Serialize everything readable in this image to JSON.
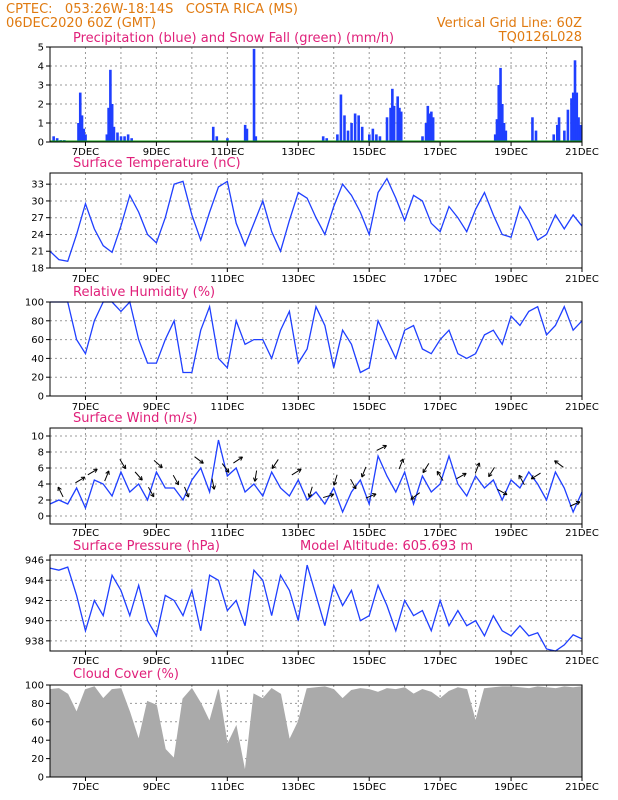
{
  "header": {
    "line1_left": "CPTEC:   053:26W-18:14S   COSTA RICA (MS)",
    "line2_left": "06DEC2020 60Z (GMT)",
    "line1_right": "Vertical Grid Line: 60Z",
    "line2_right": "TQ0126L028",
    "color": "#e07a10"
  },
  "colors": {
    "title": "#e0207a",
    "rain": "#1f3fff",
    "snow": "#10a010",
    "line": "#1f3fff",
    "cloud": "#aaaaaa",
    "grid": "#999999"
  },
  "x_labels": [
    "7DEC",
    "9DEC",
    "11DEC",
    "13DEC",
    "15DEC",
    "17DEC",
    "19DEC",
    "21DEC"
  ],
  "chart_data": [
    {
      "type": "bar",
      "title": "Precipitation (blue) and Snow Fall (green) (mm/h)",
      "ylim": [
        0,
        5
      ],
      "yticks": [
        0,
        1,
        2,
        3,
        4,
        5
      ],
      "x_range_days": [
        6.0,
        21.0
      ],
      "series": [
        {
          "name": "Precipitation (blue)",
          "points": [
            [
              6.1,
              0.3
            ],
            [
              6.2,
              0.2
            ],
            [
              6.3,
              0.1
            ],
            [
              6.4,
              0.1
            ],
            [
              6.8,
              1.0
            ],
            [
              6.85,
              2.6
            ],
            [
              6.9,
              1.4
            ],
            [
              6.95,
              0.7
            ],
            [
              7.0,
              0.4
            ],
            [
              7.6,
              0.4
            ],
            [
              7.65,
              1.8
            ],
            [
              7.7,
              3.8
            ],
            [
              7.75,
              2.0
            ],
            [
              7.8,
              0.8
            ],
            [
              7.9,
              0.5
            ],
            [
              8.0,
              0.3
            ],
            [
              8.1,
              0.3
            ],
            [
              8.2,
              0.4
            ],
            [
              8.3,
              0.2
            ],
            [
              10.6,
              0.8
            ],
            [
              10.7,
              0.3
            ],
            [
              11.0,
              0.2
            ],
            [
              11.5,
              0.9
            ],
            [
              11.55,
              0.7
            ],
            [
              11.75,
              4.9
            ],
            [
              11.8,
              0.3
            ],
            [
              13.7,
              0.3
            ],
            [
              13.8,
              0.2
            ],
            [
              14.1,
              0.4
            ],
            [
              14.2,
              2.5
            ],
            [
              14.3,
              1.4
            ],
            [
              14.4,
              0.6
            ],
            [
              14.5,
              1.0
            ],
            [
              14.6,
              1.5
            ],
            [
              14.7,
              1.4
            ],
            [
              14.8,
              0.8
            ],
            [
              15.0,
              0.4
            ],
            [
              15.1,
              0.7
            ],
            [
              15.2,
              0.4
            ],
            [
              15.3,
              0.3
            ],
            [
              15.5,
              1.3
            ],
            [
              15.6,
              1.8
            ],
            [
              15.65,
              2.8
            ],
            [
              15.7,
              1.9
            ],
            [
              15.8,
              2.4
            ],
            [
              15.85,
              1.8
            ],
            [
              15.9,
              1.6
            ],
            [
              16.5,
              0.3
            ],
            [
              16.6,
              1.0
            ],
            [
              16.65,
              1.9
            ],
            [
              16.7,
              1.5
            ],
            [
              16.75,
              1.6
            ],
            [
              16.8,
              1.3
            ],
            [
              18.55,
              0.4
            ],
            [
              18.6,
              1.2
            ],
            [
              18.65,
              3.0
            ],
            [
              18.7,
              3.9
            ],
            [
              18.75,
              2.0
            ],
            [
              18.8,
              1.0
            ],
            [
              18.85,
              0.6
            ],
            [
              19.6,
              1.3
            ],
            [
              19.7,
              0.6
            ],
            [
              20.2,
              0.4
            ],
            [
              20.3,
              0.9
            ],
            [
              20.35,
              1.3
            ],
            [
              20.5,
              0.6
            ],
            [
              20.6,
              1.7
            ],
            [
              20.7,
              2.3
            ],
            [
              20.75,
              2.6
            ],
            [
              20.8,
              4.3
            ],
            [
              20.85,
              2.6
            ],
            [
              20.9,
              1.3
            ],
            [
              20.95,
              0.9
            ]
          ]
        },
        {
          "name": "Snow Fall (green)",
          "points": [
            [
              6.0,
              0.0
            ],
            [
              21.0,
              0.0
            ]
          ]
        }
      ]
    },
    {
      "type": "line",
      "title": "Surface Temperature (nC)",
      "ylim": [
        18,
        35
      ],
      "yticks": [
        18,
        21,
        24,
        27,
        30,
        33
      ],
      "x": [
        6.0,
        6.25,
        6.5,
        6.75,
        7.0,
        7.25,
        7.5,
        7.75,
        8.0,
        8.25,
        8.5,
        8.75,
        9.0,
        9.25,
        9.5,
        9.75,
        10.0,
        10.25,
        10.5,
        10.75,
        11.0,
        11.25,
        11.5,
        11.75,
        12.0,
        12.25,
        12.5,
        12.75,
        13.0,
        13.25,
        13.5,
        13.75,
        14.0,
        14.25,
        14.5,
        14.75,
        15.0,
        15.25,
        15.5,
        15.75,
        16.0,
        16.25,
        16.5,
        16.75,
        17.0,
        17.25,
        17.5,
        17.75,
        18.0,
        18.25,
        18.5,
        18.75,
        19.0,
        19.25,
        19.5,
        19.75,
        20.0,
        20.25,
        20.5,
        20.75,
        21.0
      ],
      "y": [
        21.0,
        19.5,
        19.2,
        24.0,
        29.5,
        25.0,
        22.0,
        20.8,
        25.5,
        31.0,
        28.0,
        24.0,
        22.5,
        27.0,
        33.0,
        33.5,
        27.5,
        23.0,
        28.0,
        32.5,
        33.5,
        26.0,
        22.0,
        26.0,
        30.0,
        24.5,
        21.0,
        26.5,
        31.5,
        30.5,
        27.0,
        24.0,
        29.0,
        33.0,
        31.0,
        28.0,
        24.0,
        31.5,
        34.0,
        30.5,
        26.5,
        31.0,
        30.0,
        26.0,
        24.5,
        29.0,
        27.0,
        24.5,
        28.5,
        31.5,
        27.5,
        24.0,
        23.5,
        29.0,
        26.5,
        23.0,
        24.0,
        27.5,
        25.0,
        27.5,
        25.5
      ]
    },
    {
      "type": "line",
      "title": "Relative Humidity (%)",
      "ylim": [
        0,
        100
      ],
      "yticks": [
        0,
        20,
        40,
        60,
        80,
        100
      ],
      "x": [
        6.0,
        6.25,
        6.5,
        6.75,
        7.0,
        7.25,
        7.5,
        7.75,
        8.0,
        8.25,
        8.5,
        8.75,
        9.0,
        9.25,
        9.5,
        9.75,
        10.0,
        10.25,
        10.5,
        10.75,
        11.0,
        11.25,
        11.5,
        11.75,
        12.0,
        12.25,
        12.5,
        12.75,
        13.0,
        13.25,
        13.5,
        13.75,
        14.0,
        14.25,
        14.5,
        14.75,
        15.0,
        15.25,
        15.5,
        15.75,
        16.0,
        16.25,
        16.5,
        16.75,
        17.0,
        17.25,
        17.5,
        17.75,
        18.0,
        18.25,
        18.5,
        18.75,
        19.0,
        19.25,
        19.5,
        19.75,
        20.0,
        20.25,
        20.5,
        20.75,
        21.0
      ],
      "y": [
        100,
        100,
        100,
        60,
        45,
        80,
        100,
        100,
        90,
        100,
        60,
        35,
        35,
        60,
        80,
        25,
        25,
        70,
        95,
        40,
        30,
        80,
        55,
        60,
        60,
        40,
        70,
        90,
        35,
        50,
        95,
        75,
        30,
        70,
        55,
        25,
        30,
        80,
        60,
        40,
        70,
        75,
        50,
        45,
        60,
        70,
        45,
        40,
        45,
        65,
        70,
        55,
        85,
        75,
        90,
        95,
        65,
        75,
        95,
        70,
        80
      ]
    },
    {
      "type": "line",
      "title": "Surface Wind (m/s)",
      "ylim": [
        -1,
        11
      ],
      "yticks": [
        0,
        2,
        4,
        6,
        8,
        10
      ],
      "x": [
        6.0,
        6.25,
        6.5,
        6.75,
        7.0,
        7.25,
        7.5,
        7.75,
        8.0,
        8.25,
        8.5,
        8.75,
        9.0,
        9.25,
        9.5,
        9.75,
        10.0,
        10.25,
        10.5,
        10.75,
        11.0,
        11.25,
        11.5,
        11.75,
        12.0,
        12.25,
        12.5,
        12.75,
        13.0,
        13.25,
        13.5,
        13.75,
        14.0,
        14.25,
        14.5,
        14.75,
        15.0,
        15.25,
        15.5,
        15.75,
        16.0,
        16.25,
        16.5,
        16.75,
        17.0,
        17.25,
        17.5,
        17.75,
        18.0,
        18.25,
        18.5,
        18.75,
        19.0,
        19.25,
        19.5,
        19.75,
        20.0,
        20.25,
        20.5,
        20.75,
        21.0
      ],
      "y": [
        1.5,
        2.0,
        1.5,
        3.5,
        1.0,
        4.5,
        4.0,
        2.5,
        5.5,
        3.0,
        4.0,
        2.0,
        5.5,
        3.5,
        3.5,
        2.0,
        4.5,
        6.0,
        3.0,
        9.5,
        5.0,
        6.0,
        3.0,
        4.0,
        2.5,
        5.5,
        3.5,
        2.5,
        4.5,
        2.0,
        3.0,
        1.5,
        3.5,
        0.5,
        3.0,
        4.5,
        1.5,
        7.5,
        5.0,
        3.0,
        5.5,
        1.5,
        5.0,
        3.0,
        4.0,
        7.5,
        4.0,
        2.5,
        5.0,
        3.5,
        4.5,
        2.0,
        4.5,
        3.5,
        5.5,
        4.0,
        2.0,
        5.5,
        3.5,
        0.5,
        3.0
      ],
      "wind_arrows": [
        {
          "x": 6.3,
          "u": -0.5,
          "v": 1
        },
        {
          "x": 6.85,
          "u": 1,
          "v": 0.6
        },
        {
          "x": 7.2,
          "u": 1,
          "v": 0.6
        },
        {
          "x": 7.6,
          "u": 0.4,
          "v": 1
        },
        {
          "x": 8.05,
          "u": 0.6,
          "v": -1
        },
        {
          "x": 8.5,
          "u": 0.7,
          "v": -0.8
        },
        {
          "x": 8.85,
          "u": 0.5,
          "v": -0.9
        },
        {
          "x": 9.05,
          "u": 0.8,
          "v": -0.7
        },
        {
          "x": 9.55,
          "u": 0.5,
          "v": -0.9
        },
        {
          "x": 9.85,
          "u": 0.4,
          "v": -1
        },
        {
          "x": 10.2,
          "u": 0.8,
          "v": -0.6
        },
        {
          "x": 10.6,
          "u": 0.3,
          "v": -1.4
        },
        {
          "x": 10.95,
          "u": 0.6,
          "v": -0.8
        },
        {
          "x": 11.3,
          "u": 0.9,
          "v": 0.6
        },
        {
          "x": 11.8,
          "u": -0.2,
          "v": -1.2
        },
        {
          "x": 12.35,
          "u": -0.6,
          "v": -0.9
        },
        {
          "x": 12.95,
          "u": 0.8,
          "v": 0.5
        },
        {
          "x": 13.35,
          "u": -0.3,
          "v": -1
        },
        {
          "x": 13.85,
          "u": 1,
          "v": 0.3
        },
        {
          "x": 14.05,
          "u": -0.3,
          "v": -1
        },
        {
          "x": 14.55,
          "u": 0.5,
          "v": -0.9
        },
        {
          "x": 14.85,
          "u": -0.4,
          "v": -1
        },
        {
          "x": 15.05,
          "u": 1,
          "v": 0.4
        },
        {
          "x": 15.35,
          "u": 1,
          "v": 0.5
        },
        {
          "x": 15.9,
          "u": 0.4,
          "v": 1
        },
        {
          "x": 16.3,
          "u": -0.8,
          "v": -0.6
        },
        {
          "x": 16.6,
          "u": -0.5,
          "v": -0.8
        },
        {
          "x": 17.0,
          "u": -0.5,
          "v": 0.8
        },
        {
          "x": 17.6,
          "u": 0.9,
          "v": 0.5
        },
        {
          "x": 18.05,
          "u": 0.4,
          "v": 1
        },
        {
          "x": 18.45,
          "u": -0.5,
          "v": -0.8
        },
        {
          "x": 18.75,
          "u": 0.9,
          "v": -0.5
        },
        {
          "x": 19.3,
          "u": -0.5,
          "v": 0.9
        },
        {
          "x": 19.7,
          "u": -0.8,
          "v": -0.5
        },
        {
          "x": 20.35,
          "u": -0.8,
          "v": 0.6
        },
        {
          "x": 20.8,
          "u": 0.9,
          "v": 0.4
        }
      ]
    },
    {
      "type": "line",
      "title": "Surface Pressure (hPa)",
      "annotation": "Model Altitude: 605.693 m",
      "ylim": [
        937,
        946.5
      ],
      "yticks": [
        938,
        940,
        942,
        944,
        946
      ],
      "x": [
        6.0,
        6.25,
        6.5,
        6.75,
        7.0,
        7.25,
        7.5,
        7.75,
        8.0,
        8.25,
        8.5,
        8.75,
        9.0,
        9.25,
        9.5,
        9.75,
        10.0,
        10.25,
        10.5,
        10.75,
        11.0,
        11.25,
        11.5,
        11.75,
        12.0,
        12.25,
        12.5,
        12.75,
        13.0,
        13.25,
        13.5,
        13.75,
        14.0,
        14.25,
        14.5,
        14.75,
        15.0,
        15.25,
        15.5,
        15.75,
        16.0,
        16.25,
        16.5,
        16.75,
        17.0,
        17.25,
        17.5,
        17.75,
        18.0,
        18.25,
        18.5,
        18.75,
        19.0,
        19.25,
        19.5,
        19.75,
        20.0,
        20.25,
        20.5,
        20.75,
        21.0
      ],
      "y": [
        945.2,
        945.0,
        945.3,
        942.5,
        939.0,
        942.0,
        940.5,
        944.5,
        943.0,
        940.5,
        943.5,
        940.0,
        938.5,
        942.5,
        942.0,
        940.5,
        943.0,
        939.0,
        944.5,
        944.0,
        941.0,
        942.0,
        939.5,
        945.0,
        944.0,
        940.5,
        944.5,
        943.0,
        940.0,
        945.5,
        942.5,
        939.5,
        943.5,
        941.5,
        943.0,
        940.0,
        940.5,
        943.5,
        941.5,
        939.0,
        942.0,
        940.5,
        941.0,
        939.0,
        942.0,
        939.5,
        941.0,
        939.5,
        940.0,
        938.5,
        940.5,
        939.0,
        938.5,
        939.5,
        938.5,
        938.8,
        937.2,
        936.9,
        937.6,
        938.6,
        938.2
      ]
    },
    {
      "type": "area",
      "title": "Cloud Cover (%)",
      "ylim": [
        0,
        100
      ],
      "yticks": [
        0,
        20,
        40,
        60,
        80,
        100
      ],
      "x": [
        6.0,
        6.25,
        6.5,
        6.75,
        7.0,
        7.25,
        7.5,
        7.75,
        8.0,
        8.25,
        8.5,
        8.75,
        9.0,
        9.25,
        9.5,
        9.75,
        10.0,
        10.25,
        10.5,
        10.75,
        11.0,
        11.25,
        11.5,
        11.75,
        12.0,
        12.25,
        12.5,
        12.75,
        13.0,
        13.25,
        13.5,
        13.75,
        14.0,
        14.25,
        14.5,
        14.75,
        15.0,
        15.25,
        15.5,
        15.75,
        16.0,
        16.25,
        16.5,
        16.75,
        17.0,
        17.25,
        17.5,
        17.75,
        18.0,
        18.25,
        18.5,
        18.75,
        19.0,
        19.25,
        19.5,
        19.75,
        20.0,
        20.25,
        20.5,
        20.75,
        21.0
      ],
      "y": [
        95,
        96,
        90,
        70,
        95,
        98,
        85,
        95,
        96,
        70,
        40,
        82,
        78,
        30,
        20,
        85,
        96,
        80,
        60,
        95,
        35,
        55,
        5,
        90,
        85,
        96,
        90,
        40,
        60,
        96,
        97,
        98,
        95,
        85,
        94,
        96,
        95,
        92,
        96,
        95,
        97,
        90,
        95,
        92,
        85,
        93,
        97,
        95,
        60,
        96,
        97,
        98,
        98,
        97,
        96,
        98,
        97,
        96,
        98,
        97,
        98
      ]
    }
  ]
}
